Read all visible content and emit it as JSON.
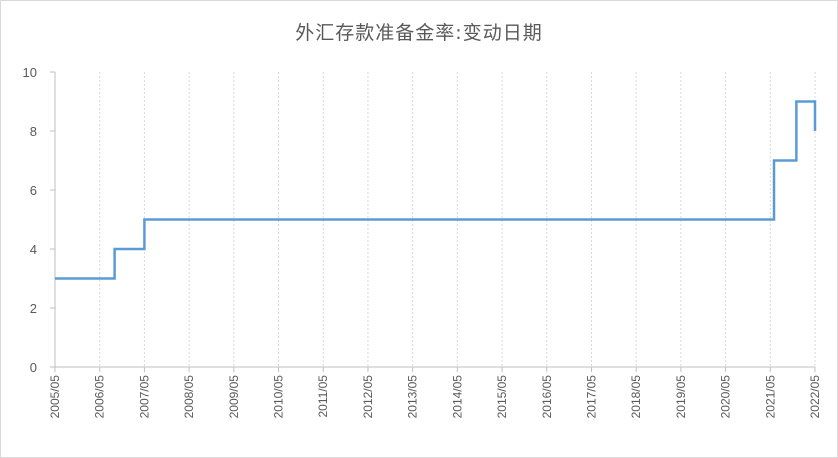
{
  "chart_data": {
    "type": "line",
    "step": true,
    "title": "外汇存款准备金率:变动日期",
    "xlabel": "",
    "ylabel": "",
    "ylim": [
      0,
      10
    ],
    "yticks": [
      0,
      2,
      4,
      6,
      8,
      10
    ],
    "xticks": [
      "2005/05",
      "2006/05",
      "2007/05",
      "2008/05",
      "2009/05",
      "2010/05",
      "2011/05",
      "2012/05",
      "2013/05",
      "2014/05",
      "2015/05",
      "2016/05",
      "2017/05",
      "2018/05",
      "2019/05",
      "2020/05",
      "2021/05",
      "2022/05"
    ],
    "xlim": [
      "2005/05",
      "2022/05"
    ],
    "grid": "vertical-dotted",
    "legend": "none",
    "color": "#5b9bd5",
    "series": [
      {
        "x": [
          "2005/05",
          "2006/09",
          "2007/05",
          "2021/06",
          "2021/12",
          "2022/05"
        ],
        "values": [
          3,
          4,
          5,
          7,
          9,
          8
        ]
      }
    ]
  }
}
